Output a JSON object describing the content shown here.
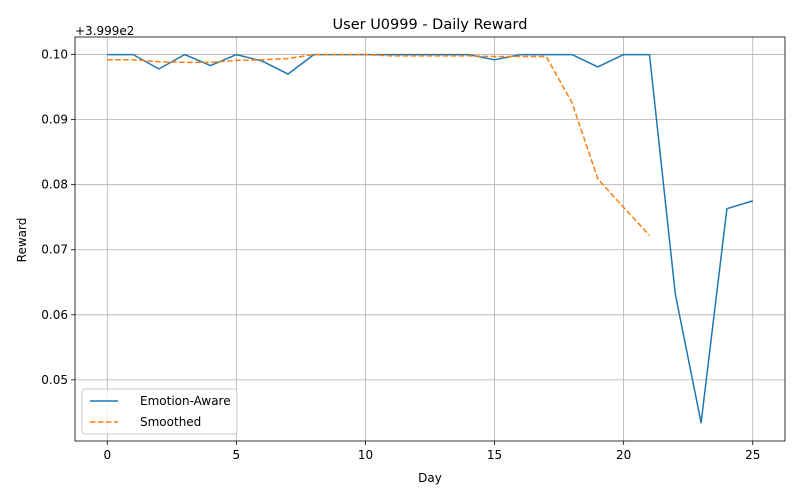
{
  "chart_data": {
    "type": "line",
    "title": "User U0999 - Daily Reward",
    "xlabel": "Day",
    "ylabel": "Reward",
    "offset_label": "+3.999e2",
    "y_offset": 399.9,
    "xlim": [
      -1.25,
      26.25
    ],
    "ylim": [
      0.0406,
      0.1027
    ],
    "xticks": [
      0,
      5,
      10,
      15,
      20,
      25
    ],
    "yticks": [
      0.05,
      0.06,
      0.07,
      0.08,
      0.09,
      0.1
    ],
    "ytick_labels": [
      "0.05",
      "0.06",
      "0.07",
      "0.08",
      "0.09",
      "0.10"
    ],
    "grid": true,
    "legend_position": "lower-left",
    "series": [
      {
        "name": "Emotion-Aware",
        "color": "#1f77b4",
        "style": "solid",
        "x": [
          0,
          1,
          2,
          3,
          4,
          5,
          6,
          7,
          8,
          9,
          10,
          11,
          12,
          13,
          14,
          15,
          16,
          17,
          18,
          19,
          20,
          21,
          22,
          23,
          24,
          25
        ],
        "y": [
          0.1,
          0.1,
          0.0978,
          0.1,
          0.0983,
          0.1,
          0.099,
          0.097,
          0.1,
          0.1,
          0.1,
          0.1,
          0.1,
          0.1,
          0.1,
          0.0992,
          0.1,
          0.1,
          0.1,
          0.0981,
          0.1,
          0.1,
          0.0632,
          0.0434,
          0.0763,
          0.0775
        ]
      },
      {
        "name": "Smoothed",
        "color": "#ff7f0e",
        "style": "dashed",
        "x": [
          0,
          1,
          2,
          3,
          4,
          5,
          6,
          7,
          8,
          9,
          10,
          11,
          12,
          13,
          14,
          15,
          16,
          17,
          18,
          19,
          20,
          21
        ],
        "y": [
          0.0992,
          0.0992,
          0.0989,
          0.0988,
          0.0988,
          0.0991,
          0.0992,
          0.0994,
          0.1,
          0.1,
          0.1,
          0.0998,
          0.0998,
          0.0998,
          0.0998,
          0.0997,
          0.0997,
          0.0997,
          0.0926,
          0.0809,
          0.0765,
          0.0722
        ]
      }
    ]
  }
}
